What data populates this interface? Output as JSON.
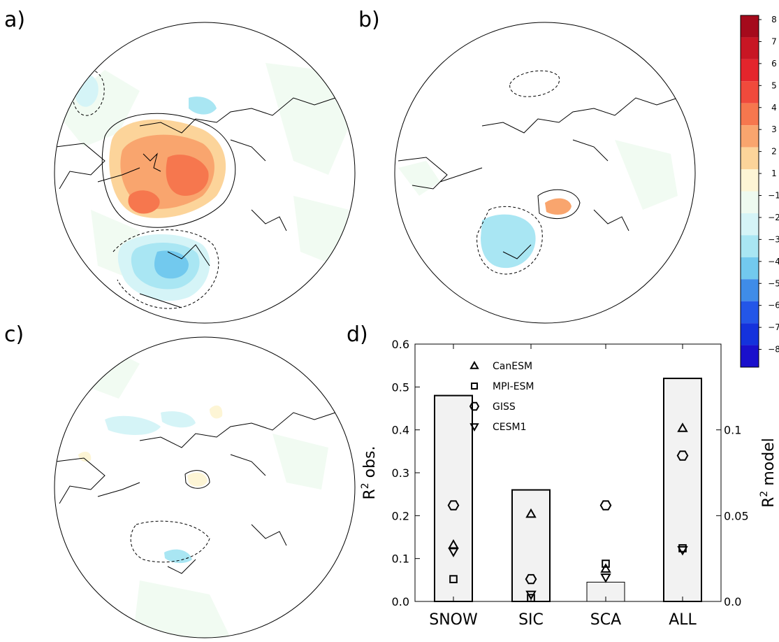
{
  "panels": [
    {
      "label": "a)"
    },
    {
      "label": "b)"
    },
    {
      "label": "c)"
    },
    {
      "label": "d)"
    }
  ],
  "colorbar": {
    "ticks": [
      "8",
      "7",
      "6",
      "5",
      "4",
      "3",
      "2",
      "1",
      "−1",
      "−2",
      "−3",
      "−4",
      "−5",
      "−6",
      "−7",
      "−8"
    ],
    "colors": [
      "#a50a1c",
      "#c81624",
      "#e4252c",
      "#f04a3c",
      "#f6774e",
      "#f9a56e",
      "#fcd49a",
      "#fdf5d5",
      "#eefaf0",
      "#d5f4f7",
      "#a9e6f3",
      "#72c9ee",
      "#3f8ce8",
      "#2356e8",
      "#1432dc",
      "#1a10cc"
    ]
  },
  "chart_data": {
    "type": "bar",
    "categories": [
      "SNOW",
      "SIC",
      "SCA",
      "ALL"
    ],
    "values": [
      0.48,
      0.26,
      0.045,
      0.52
    ],
    "ylim": [
      0,
      0.6
    ],
    "yticks": [
      "0.0",
      "0.1",
      "0.2",
      "0.3",
      "0.4",
      "0.5",
      "0.6"
    ],
    "ylabel": "R",
    "ylabel_sup": "2",
    "ylabel_tail": " obs.",
    "y2lim": [
      0,
      0.15
    ],
    "y2ticks": [
      "0.0",
      "0.05",
      "0.1"
    ],
    "y2label": "R",
    "y2label_sup": "2",
    "y2label_tail": " model",
    "series": [
      {
        "name": "CanESM",
        "marker": "triangle-up",
        "values": [
          0.033,
          0.051,
          0.019,
          0.101
        ]
      },
      {
        "name": "MPI-ESM",
        "marker": "square",
        "values": [
          0.013,
          0.002,
          0.022,
          0.031
        ]
      },
      {
        "name": "GISS",
        "marker": "hexagon",
        "values": [
          0.056,
          0.013,
          0.056,
          0.085
        ]
      },
      {
        "name": "CESM1",
        "marker": "triangle-down",
        "values": [
          0.029,
          0.004,
          0.014,
          0.03
        ]
      }
    ]
  }
}
